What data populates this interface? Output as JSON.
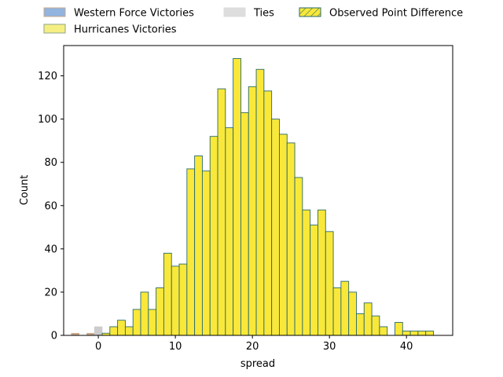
{
  "chart_data": {
    "type": "bar",
    "xlabel": "spread",
    "ylabel": "Count",
    "xlim": [
      -4.5,
      46
    ],
    "ylim": [
      0,
      134
    ],
    "grid": false,
    "legend_position": "top (above plot)",
    "x_ticks": [
      0,
      10,
      20,
      30,
      40
    ],
    "y_ticks": [
      0,
      20,
      40,
      60,
      80,
      100,
      120
    ],
    "bin_width": 1,
    "legend": [
      {
        "label": "Western Force Victories",
        "type": "patch",
        "fill": "#92b4de",
        "edge": "#c9a98c"
      },
      {
        "label": "Hurricanes Victories",
        "type": "patch",
        "fill": "#f5ee83",
        "edge": "#8fa68a"
      },
      {
        "label": "Ties",
        "type": "patch",
        "fill": "#dddddd",
        "edge": "#dddddd"
      },
      {
        "label": "Observed Point Difference",
        "type": "hatched",
        "fill": "#f9e83a",
        "edge": "#2a6a6a"
      }
    ],
    "series": [
      {
        "name": "Western Force Victories",
        "color": "#c9a98c",
        "bins": [
          {
            "x": -3,
            "count": 1
          },
          {
            "x": -1,
            "count": 1
          }
        ]
      },
      {
        "name": "Ties",
        "color": "#cccccc",
        "bins": [
          {
            "x": 0,
            "count": 4
          }
        ]
      },
      {
        "name": "Hurricanes Victories",
        "color": "#f9e83a",
        "edge": "#2a6a6a",
        "bins": [
          {
            "x": 1,
            "count": 1
          },
          {
            "x": 2,
            "count": 4
          },
          {
            "x": 3,
            "count": 7
          },
          {
            "x": 4,
            "count": 4
          },
          {
            "x": 5,
            "count": 12
          },
          {
            "x": 6,
            "count": 20
          },
          {
            "x": 7,
            "count": 12
          },
          {
            "x": 8,
            "count": 22
          },
          {
            "x": 9,
            "count": 38
          },
          {
            "x": 10,
            "count": 32
          },
          {
            "x": 11,
            "count": 33
          },
          {
            "x": 12,
            "count": 77
          },
          {
            "x": 13,
            "count": 83
          },
          {
            "x": 14,
            "count": 76
          },
          {
            "x": 15,
            "count": 92
          },
          {
            "x": 16,
            "count": 114
          },
          {
            "x": 17,
            "count": 96
          },
          {
            "x": 18,
            "count": 128
          },
          {
            "x": 19,
            "count": 103
          },
          {
            "x": 20,
            "count": 115
          },
          {
            "x": 21,
            "count": 123
          },
          {
            "x": 22,
            "count": 113
          },
          {
            "x": 23,
            "count": 100
          },
          {
            "x": 24,
            "count": 93
          },
          {
            "x": 25,
            "count": 89
          },
          {
            "x": 26,
            "count": 73
          },
          {
            "x": 27,
            "count": 58
          },
          {
            "x": 28,
            "count": 51
          },
          {
            "x": 29,
            "count": 58
          },
          {
            "x": 30,
            "count": 48
          },
          {
            "x": 31,
            "count": 22
          },
          {
            "x": 32,
            "count": 25
          },
          {
            "x": 33,
            "count": 20
          },
          {
            "x": 34,
            "count": 10
          },
          {
            "x": 35,
            "count": 15
          },
          {
            "x": 36,
            "count": 9
          },
          {
            "x": 37,
            "count": 4
          },
          {
            "x": 39,
            "count": 6
          },
          {
            "x": 40,
            "count": 2
          },
          {
            "x": 41,
            "count": 2
          },
          {
            "x": 42,
            "count": 2
          },
          {
            "x": 43,
            "count": 2
          }
        ]
      }
    ]
  }
}
